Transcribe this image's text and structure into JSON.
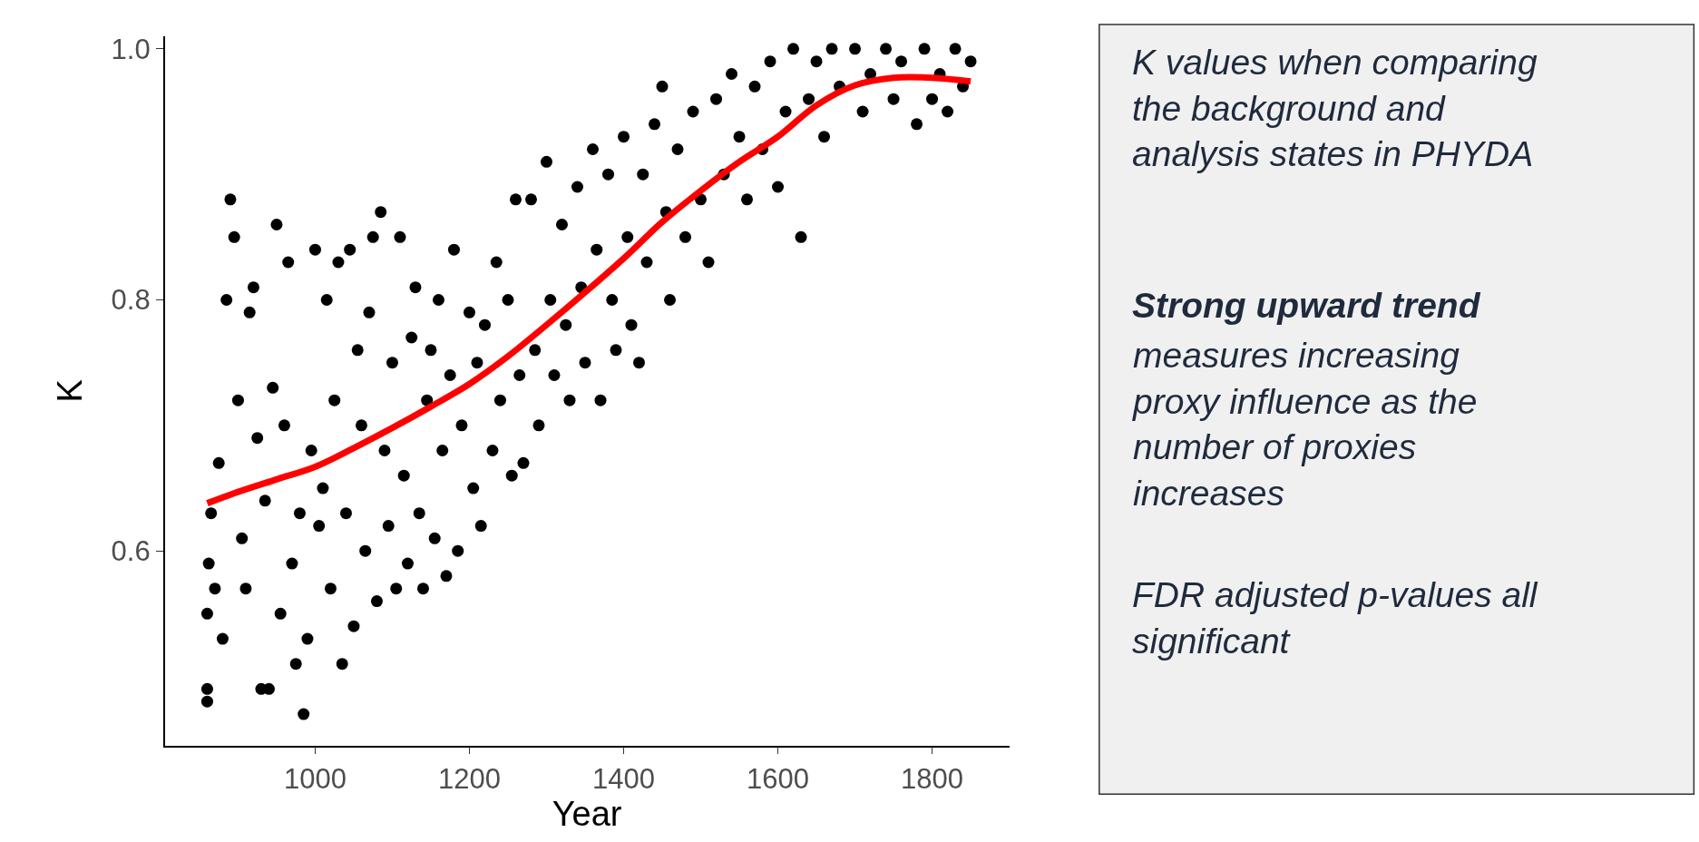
{
  "chart_data": [
    {
      "type": "scatter",
      "xlabel": "Year",
      "ylabel": "K",
      "xlim": [
        805,
        1900
      ],
      "ylim": [
        0.445,
        1.01
      ],
      "xticks": [
        1000,
        1200,
        1400,
        1600,
        1800
      ],
      "yticks": [
        {
          "value": 0.6,
          "label": "0.6"
        },
        {
          "value": 0.8,
          "label": "0.8"
        },
        {
          "value": 1.0,
          "label": "1.0"
        }
      ],
      "series": [
        {
          "color": "#000000",
          "type": "scatter",
          "marker": "circle",
          "x": [
            860,
            860,
            860,
            862,
            865,
            870,
            875,
            880,
            885,
            890,
            895,
            900,
            905,
            910,
            915,
            920,
            925,
            930,
            935,
            940,
            945,
            950,
            955,
            960,
            965,
            970,
            975,
            980,
            985,
            990,
            995,
            1000,
            1005,
            1010,
            1015,
            1020,
            1025,
            1030,
            1035,
            1040,
            1045,
            1050,
            1055,
            1060,
            1065,
            1070,
            1075,
            1080,
            1085,
            1090,
            1095,
            1100,
            1105,
            1110,
            1115,
            1120,
            1125,
            1130,
            1135,
            1140,
            1145,
            1150,
            1155,
            1160,
            1165,
            1170,
            1175,
            1180,
            1185,
            1190,
            1200,
            1205,
            1210,
            1215,
            1220,
            1230,
            1235,
            1240,
            1250,
            1255,
            1260,
            1265,
            1270,
            1280,
            1285,
            1290,
            1300,
            1305,
            1310,
            1320,
            1325,
            1330,
            1340,
            1345,
            1350,
            1360,
            1365,
            1370,
            1380,
            1385,
            1390,
            1400,
            1405,
            1410,
            1420,
            1425,
            1430,
            1440,
            1450,
            1455,
            1460,
            1470,
            1480,
            1490,
            1500,
            1510,
            1520,
            1530,
            1540,
            1550,
            1560,
            1570,
            1580,
            1590,
            1600,
            1610,
            1620,
            1630,
            1640,
            1650,
            1660,
            1670,
            1680,
            1700,
            1710,
            1720,
            1740,
            1750,
            1760,
            1780,
            1790,
            1800,
            1810,
            1820,
            1830,
            1840,
            1850
          ],
          "values": [
            0.48,
            0.49,
            0.55,
            0.59,
            0.63,
            0.57,
            0.67,
            0.53,
            0.8,
            0.88,
            0.85,
            0.72,
            0.61,
            0.57,
            0.79,
            0.81,
            0.69,
            0.49,
            0.64,
            0.49,
            0.73,
            0.86,
            0.55,
            0.7,
            0.83,
            0.59,
            0.51,
            0.63,
            0.47,
            0.53,
            0.68,
            0.84,
            0.62,
            0.65,
            0.8,
            0.57,
            0.72,
            0.83,
            0.51,
            0.63,
            0.84,
            0.54,
            0.76,
            0.7,
            0.6,
            0.79,
            0.85,
            0.56,
            0.87,
            0.68,
            0.62,
            0.75,
            0.57,
            0.85,
            0.66,
            0.59,
            0.77,
            0.81,
            0.63,
            0.57,
            0.72,
            0.76,
            0.61,
            0.8,
            0.68,
            0.58,
            0.74,
            0.84,
            0.6,
            0.7,
            0.79,
            0.65,
            0.75,
            0.62,
            0.78,
            0.68,
            0.83,
            0.72,
            0.8,
            0.66,
            0.88,
            0.74,
            0.67,
            0.88,
            0.76,
            0.7,
            0.91,
            0.8,
            0.74,
            0.86,
            0.78,
            0.72,
            0.89,
            0.81,
            0.75,
            0.92,
            0.84,
            0.72,
            0.9,
            0.8,
            0.76,
            0.93,
            0.85,
            0.78,
            0.75,
            0.9,
            0.83,
            0.94,
            0.97,
            0.87,
            0.8,
            0.92,
            0.85,
            0.95,
            0.88,
            0.83,
            0.96,
            0.9,
            0.98,
            0.93,
            0.88,
            0.97,
            0.92,
            0.99,
            0.89,
            0.95,
            1.0,
            0.85,
            0.96,
            0.99,
            0.93,
            1.0,
            0.97,
            1.0,
            0.95,
            0.98,
            1.0,
            0.96,
            0.99,
            0.94,
            1.0,
            0.96,
            0.98,
            0.95,
            1.0,
            0.97,
            0.99
          ]
        },
        {
          "color": "#ff0000",
          "type": "line",
          "marker": "none",
          "x": [
            860,
            900,
            950,
            1000,
            1050,
            1100,
            1150,
            1200,
            1250,
            1300,
            1350,
            1400,
            1450,
            1500,
            1550,
            1600,
            1650,
            1700,
            1750,
            1800,
            1850
          ],
          "values": [
            0.638,
            0.647,
            0.657,
            0.667,
            0.682,
            0.698,
            0.715,
            0.733,
            0.755,
            0.78,
            0.806,
            0.833,
            0.862,
            0.887,
            0.91,
            0.93,
            0.955,
            0.971,
            0.977,
            0.977,
            0.974
          ]
        }
      ]
    },
    {
      "type": "other",
      "annotations": [
        "K values when comparing\nthe background and\nanalysis states in PHYDA",
        "Strong upward trend",
        "measures increasing\nproxy influence as the\nnumber of proxies\nincreases",
        "FDR adjusted p-values all\nsignificant"
      ]
    }
  ]
}
